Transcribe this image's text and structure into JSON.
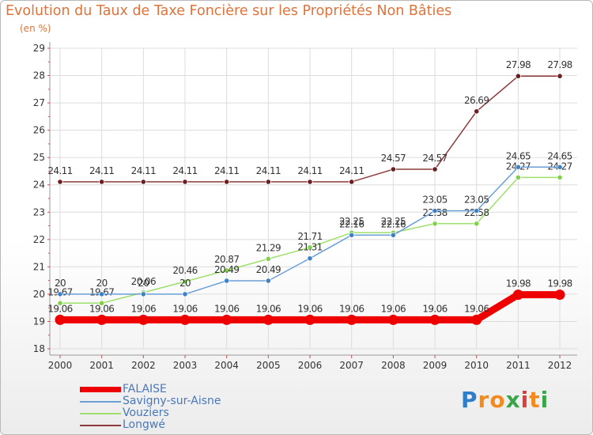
{
  "title": "Evolution du Taux de Taxe Foncière sur les Propriétés Non Bâties",
  "unit_label": "(en %)",
  "logo": {
    "letters": [
      "P",
      "r",
      "o",
      "x",
      "i",
      "t",
      "i"
    ],
    "colors": [
      "#2f7ec9",
      "#f28a1e",
      "#f28a1e",
      "#3aa64a",
      "#e23b3b",
      "#f28a1e",
      "#3aa64a"
    ]
  },
  "chart_data": {
    "type": "line",
    "title": "Evolution du Taux de Taxe Foncière sur les Propriétés Non Bâties",
    "ylabel": "(en %)",
    "xlabel": "",
    "ylim": [
      18,
      29
    ],
    "yticks": [
      "18",
      "19",
      "20",
      "21",
      "22",
      "23",
      "24",
      "25",
      "26",
      "27",
      "28",
      "29"
    ],
    "categories": [
      "2000",
      "2001",
      "2002",
      "2003",
      "2004",
      "2005",
      "2006",
      "2007",
      "2008",
      "2009",
      "2010",
      "2011",
      "2012"
    ],
    "legend_position": "bottom-left",
    "series": [
      {
        "name": "FALAISE",
        "color": "#ee0000",
        "values": [
          19.06,
          19.06,
          19.06,
          19.06,
          19.06,
          19.06,
          19.06,
          19.06,
          19.06,
          19.06,
          19.06,
          19.98,
          19.98
        ],
        "labels": [
          "19.06",
          "19.06",
          "19.06",
          "19.06",
          "19.06",
          "19.06",
          "19.06",
          "19.06",
          "19.06",
          "19.06",
          "19.06",
          "19.98",
          "19.98"
        ]
      },
      {
        "name": "Savigny-sur-Aisne",
        "color": "#6a9fd8",
        "values": [
          20,
          20,
          20,
          20,
          20.49,
          20.49,
          21.31,
          22.16,
          22.16,
          23.05,
          23.05,
          24.65,
          24.65
        ],
        "labels": [
          "20",
          "20",
          "20",
          "20",
          "20.49",
          "20.49",
          "21.31",
          "22.16",
          "22.16",
          "23.05",
          "23.05",
          "24.65",
          "24.65"
        ]
      },
      {
        "name": "Vouziers",
        "color": "#9ee06a",
        "values": [
          19.67,
          19.67,
          20.06,
          20.46,
          20.87,
          21.29,
          21.71,
          22.25,
          22.25,
          22.58,
          22.58,
          24.27,
          24.27
        ],
        "labels": [
          "19.67",
          "19.67",
          "20.06",
          "20.46",
          "20.87",
          "21.29",
          "21.71",
          "22.25",
          "22.25",
          "22.58",
          "22.58",
          "24.27",
          "24.27"
        ]
      },
      {
        "name": "Longwé",
        "color": "#8e3a3a",
        "values": [
          24.11,
          24.11,
          24.11,
          24.11,
          24.11,
          24.11,
          24.11,
          24.11,
          24.57,
          24.57,
          26.69,
          27.98,
          27.98
        ],
        "labels": [
          "24.11",
          "24.11",
          "24.11",
          "24.11",
          "24.11",
          "24.11",
          "24.11",
          "24.11",
          "24.57",
          "24.57",
          "26.69",
          "27.98",
          "27.98"
        ]
      }
    ]
  }
}
